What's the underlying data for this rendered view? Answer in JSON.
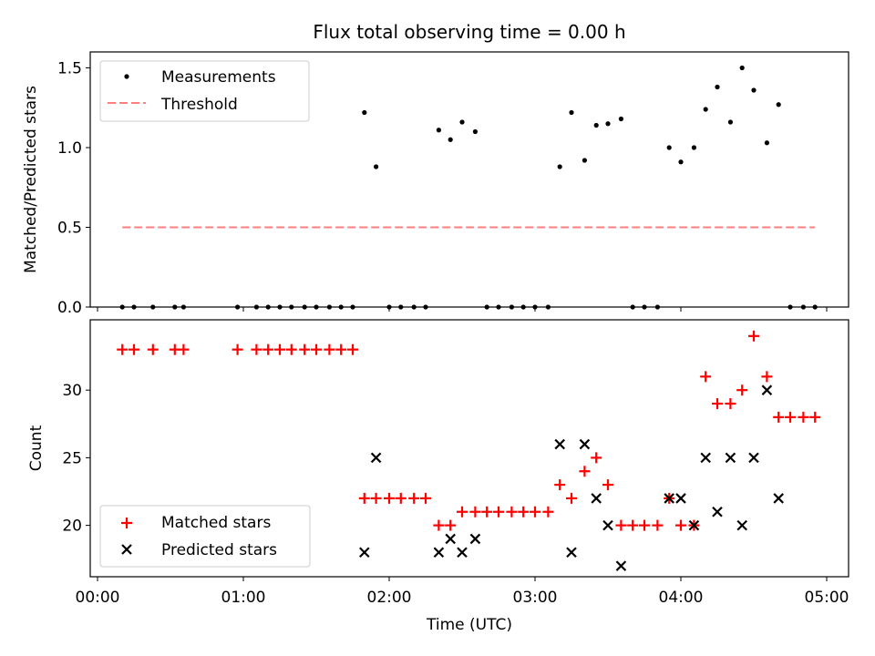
{
  "chart_data": {
    "type": "scatter",
    "title": "Flux total observing time = 0.00 h",
    "xlabel": "Time (UTC)",
    "x_ticks": [
      "00:00",
      "01:00",
      "02:00",
      "03:00",
      "04:00",
      "05:00"
    ],
    "x_range_hours": [
      -0.05,
      5.15
    ],
    "colors": {
      "measurements": "#000000",
      "threshold": "#ff7f7f",
      "matched": "#ff0000",
      "predicted": "#000000"
    },
    "panels": [
      {
        "id": "ratio",
        "ylabel": "Matched/Predicted stars",
        "ylim": [
          0,
          1.6
        ],
        "y_ticks": [
          0.0,
          0.5,
          1.0,
          1.5
        ],
        "y_tick_labels": [
          "0.0",
          "0.5",
          "1.0",
          "1.5"
        ],
        "legend": {
          "position": "upper left",
          "entries": [
            "Measurements",
            "Threshold"
          ]
        },
        "series": [
          {
            "name": "Measurements",
            "kind": "scatter",
            "marker": "dot",
            "x": [
              0.17,
              0.25,
              0.38,
              0.53,
              0.59,
              0.96,
              1.09,
              1.17,
              1.25,
              1.33,
              1.42,
              1.5,
              1.59,
              1.67,
              1.75,
              1.83,
              1.91,
              2.0,
              2.08,
              2.17,
              2.25,
              2.34,
              2.42,
              2.5,
              2.59,
              2.67,
              2.75,
              2.84,
              2.92,
              3.0,
              3.09,
              3.17,
              3.25,
              3.34,
              3.42,
              3.5,
              3.59,
              3.67,
              3.75,
              3.84,
              3.92,
              4.0,
              4.09,
              4.17,
              4.25,
              4.34,
              4.42,
              4.5,
              4.59,
              4.67,
              4.75,
              4.84,
              4.92
            ],
            "y": [
              0,
              0,
              0,
              0,
              0,
              0,
              0,
              0,
              0,
              0,
              0,
              0,
              0,
              0,
              0,
              1.22,
              0.88,
              0,
              0,
              0,
              0,
              1.11,
              1.05,
              1.16,
              1.1,
              0,
              0,
              0,
              0,
              0,
              0,
              0.88,
              1.22,
              0.92,
              1.14,
              1.15,
              1.18,
              0,
              0,
              0,
              1.0,
              0.91,
              1.0,
              1.24,
              1.38,
              1.16,
              1.5,
              1.36,
              1.03,
              1.27,
              0,
              0,
              0
            ]
          },
          {
            "name": "Threshold",
            "kind": "line",
            "style": "dashed",
            "x": [
              0.17,
              4.92
            ],
            "y": [
              0.5,
              0.5
            ]
          }
        ]
      },
      {
        "id": "count",
        "ylabel": "Count",
        "ylim": [
          16.2,
          35.2
        ],
        "y_ticks": [
          20,
          25,
          30
        ],
        "y_tick_labels": [
          "20",
          "25",
          "30"
        ],
        "legend": {
          "position": "lower left",
          "entries": [
            "Matched stars",
            "Predicted stars"
          ]
        },
        "series": [
          {
            "name": "Matched stars",
            "kind": "scatter",
            "marker": "plus",
            "x": [
              0.17,
              0.25,
              0.38,
              0.53,
              0.59,
              0.96,
              1.09,
              1.17,
              1.25,
              1.33,
              1.42,
              1.5,
              1.59,
              1.67,
              1.75,
              1.83,
              1.91,
              2.0,
              2.08,
              2.17,
              2.25,
              2.34,
              2.42,
              2.5,
              2.59,
              2.67,
              2.75,
              2.84,
              2.92,
              3.0,
              3.09,
              3.17,
              3.25,
              3.34,
              3.42,
              3.5,
              3.59,
              3.67,
              3.75,
              3.84,
              3.92,
              4.0,
              4.09,
              4.17,
              4.25,
              4.34,
              4.42,
              4.5,
              4.59,
              4.67,
              4.75,
              4.84,
              4.92
            ],
            "y": [
              33,
              33,
              33,
              33,
              33,
              33,
              33,
              33,
              33,
              33,
              33,
              33,
              33,
              33,
              33,
              22,
              22,
              22,
              22,
              22,
              22,
              20,
              20,
              21,
              21,
              21,
              21,
              21,
              21,
              21,
              21,
              23,
              22,
              24,
              25,
              23,
              20,
              20,
              20,
              20,
              22,
              20,
              20,
              31,
              29,
              29,
              30,
              34,
              31,
              28,
              28,
              28,
              28
            ]
          },
          {
            "name": "Predicted stars",
            "kind": "scatter",
            "marker": "x",
            "x": [
              1.83,
              1.91,
              2.34,
              2.42,
              2.5,
              2.59,
              3.17,
              3.25,
              3.34,
              3.42,
              3.5,
              3.59,
              3.92,
              4.0,
              4.09,
              4.17,
              4.25,
              4.34,
              4.42,
              4.5,
              4.59,
              4.67
            ],
            "y": [
              18,
              25,
              18,
              19,
              18,
              19,
              26,
              18,
              26,
              22,
              20,
              17,
              22,
              22,
              20,
              25,
              21,
              25,
              20,
              25,
              30,
              22
            ]
          }
        ]
      }
    ]
  }
}
